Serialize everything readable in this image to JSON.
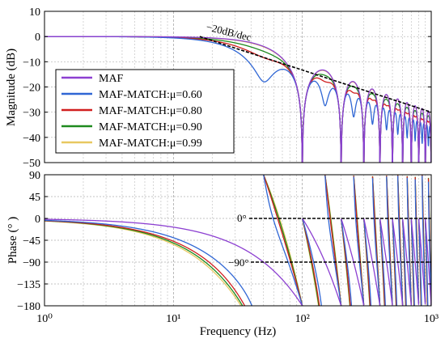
{
  "chart_data": [
    {
      "type": "line",
      "panel": "magnitude",
      "xscale": "log",
      "xlim": [
        1,
        1000
      ],
      "ylim": [
        -50,
        10
      ],
      "yticks": [
        10,
        0,
        -10,
        -20,
        -30,
        -40,
        -50
      ],
      "ylabel": "Magnitude (dB)",
      "xlabel": "",
      "grid": true,
      "legend": {
        "placement": "lower-left",
        "entries": [
          {
            "label": "MAF",
            "color": "#8c3fd1"
          },
          {
            "label": "MAF-MATCH:μ=0.60",
            "color": "#2f66d4"
          },
          {
            "label": "MAF-MATCH:μ=0.80",
            "color": "#d11f1f"
          },
          {
            "label": "MAF-MATCH:μ=0.90",
            "color": "#1e8a1e"
          },
          {
            "label": "MAF-MATCH:μ=0.99",
            "color": "#e8c860"
          }
        ]
      },
      "annotations": [
        {
          "text": "−20dB/dec",
          "line_from": [
            16,
            0
          ],
          "line_to": [
            1000,
            -30
          ]
        }
      ],
      "series": [
        {
          "name": "MAF",
          "color": "#8c3fd1",
          "mu": 0.0
        },
        {
          "name": "MAF-MATCH:μ=0.60",
          "color": "#2f66d4",
          "mu": 0.6
        },
        {
          "name": "MAF-MATCH:μ=0.80",
          "color": "#d11f1f",
          "mu": 0.8
        },
        {
          "name": "MAF-MATCH:μ=0.90",
          "color": "#1e8a1e",
          "mu": 0.9
        },
        {
          "name": "MAF-MATCH:μ=0.99",
          "color": "#e8c860",
          "mu": 0.99
        }
      ]
    },
    {
      "type": "line",
      "panel": "phase",
      "xscale": "log",
      "xlim": [
        1,
        1000
      ],
      "xticks": [
        "10⁰",
        "10¹",
        "10²",
        "10³"
      ],
      "ylim": [
        -180,
        90
      ],
      "yticks": [
        90,
        45,
        0,
        -45,
        -90,
        -135,
        -180
      ],
      "ylabel": "Phase (° )",
      "xlabel": "Frequency (Hz)",
      "grid": true,
      "annotations": [
        {
          "text": "0°",
          "y": 0
        },
        {
          "text": "−90°",
          "y": -90
        }
      ],
      "series": [
        {
          "name": "MAF",
          "color": "#8c3fd1",
          "mu": 0.0
        },
        {
          "name": "MAF-MATCH:μ=0.60",
          "color": "#2f66d4",
          "mu": 0.6
        },
        {
          "name": "MAF-MATCH:μ=0.80",
          "color": "#d11f1f",
          "mu": 0.8
        },
        {
          "name": "MAF-MATCH:μ=0.90",
          "color": "#1e8a1e",
          "mu": 0.9
        },
        {
          "name": "MAF-MATCH:μ=0.99",
          "color": "#e8c860",
          "mu": 0.99
        }
      ]
    }
  ]
}
